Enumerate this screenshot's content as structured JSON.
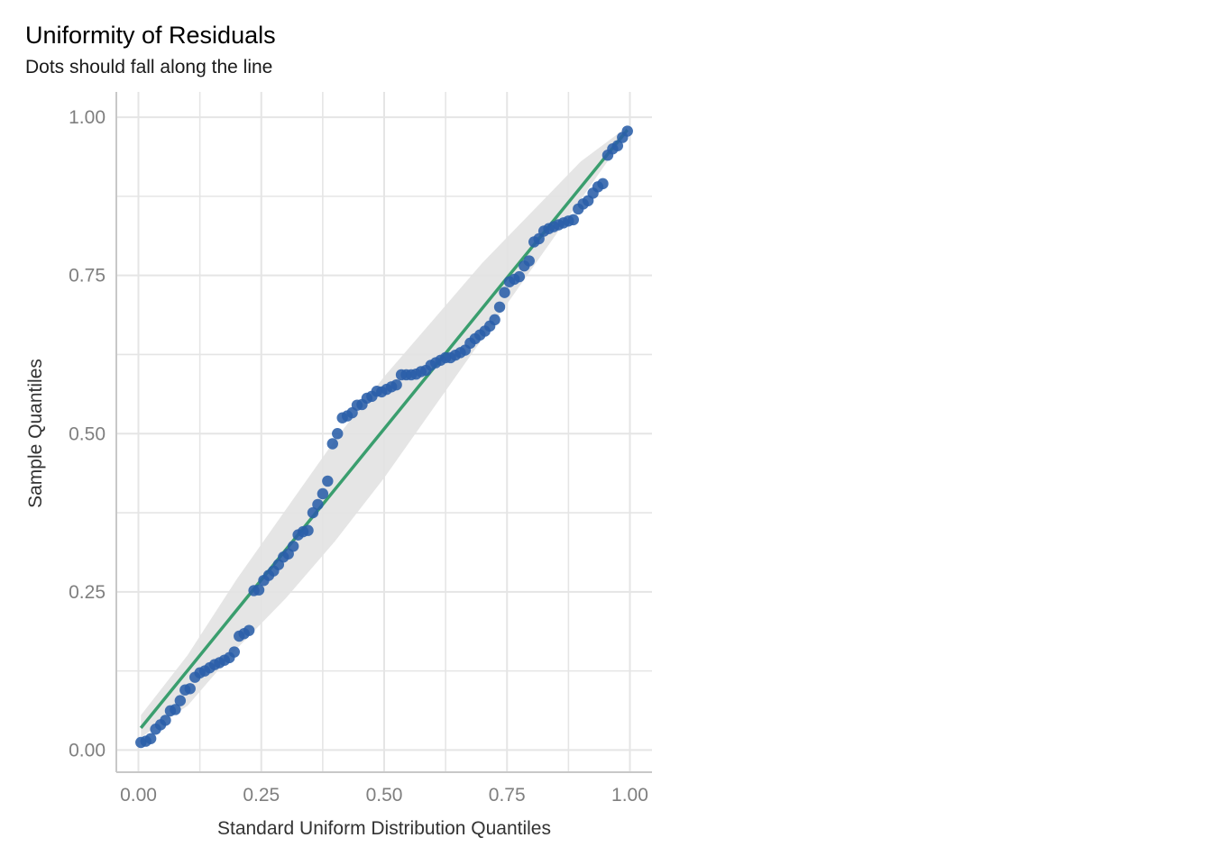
{
  "chart_data": {
    "type": "scatter",
    "title": "Uniformity of Residuals",
    "subtitle": "Dots should fall along the line",
    "xlabel": "Standard Uniform Distribution Quantiles",
    "ylabel": "Sample Quantiles",
    "xlim": [
      -0.045,
      1.045
    ],
    "ylim": [
      -0.035,
      1.04
    ],
    "x_ticks": [
      "0.00",
      "0.25",
      "0.50",
      "0.75",
      "1.00"
    ],
    "y_ticks": [
      "0.00",
      "0.25",
      "0.50",
      "0.75",
      "1.00"
    ],
    "grid": true,
    "colors": {
      "points": "#2a5ea8",
      "line": "#3a9e6e",
      "band": "#e2e2e2",
      "grid": "#e5e5e5",
      "axis": "#c8c8c8"
    },
    "reference_line": {
      "x": [
        0.005,
        0.995
      ],
      "y": [
        0.035,
        0.98
      ]
    },
    "band": {
      "x": [
        0.005,
        0.1,
        0.2,
        0.3,
        0.4,
        0.5,
        0.6,
        0.7,
        0.8,
        0.9,
        0.995
      ],
      "lower": [
        0.02,
        0.07,
        0.16,
        0.24,
        0.33,
        0.43,
        0.54,
        0.65,
        0.76,
        0.87,
        0.975
      ],
      "upper": [
        0.055,
        0.15,
        0.27,
        0.38,
        0.49,
        0.59,
        0.68,
        0.77,
        0.85,
        0.93,
        0.985
      ]
    },
    "series": [
      {
        "x": [
          0.005,
          0.015,
          0.025,
          0.035,
          0.045,
          0.055,
          0.065,
          0.075,
          0.085,
          0.095,
          0.105,
          0.115,
          0.125,
          0.135,
          0.145,
          0.155,
          0.165,
          0.175,
          0.185,
          0.195,
          0.205,
          0.215,
          0.225,
          0.235,
          0.245,
          0.255,
          0.265,
          0.275,
          0.285,
          0.295,
          0.305,
          0.315,
          0.325,
          0.335,
          0.345,
          0.355,
          0.365,
          0.375,
          0.385,
          0.395,
          0.405,
          0.415,
          0.425,
          0.435,
          0.445,
          0.455,
          0.465,
          0.475,
          0.485,
          0.495,
          0.505,
          0.515,
          0.525,
          0.535,
          0.545,
          0.555,
          0.565,
          0.575,
          0.585,
          0.595,
          0.605,
          0.615,
          0.625,
          0.635,
          0.645,
          0.655,
          0.665,
          0.675,
          0.685,
          0.695,
          0.705,
          0.715,
          0.725,
          0.735,
          0.745,
          0.755,
          0.765,
          0.775,
          0.785,
          0.795,
          0.805,
          0.815,
          0.825,
          0.835,
          0.845,
          0.855,
          0.865,
          0.875,
          0.885,
          0.895,
          0.905,
          0.915,
          0.925,
          0.935,
          0.945,
          0.955,
          0.965,
          0.975,
          0.985,
          0.995
        ],
        "y": [
          0.012,
          0.014,
          0.018,
          0.033,
          0.04,
          0.047,
          0.062,
          0.064,
          0.078,
          0.095,
          0.097,
          0.115,
          0.122,
          0.125,
          0.13,
          0.135,
          0.138,
          0.142,
          0.146,
          0.155,
          0.18,
          0.184,
          0.189,
          0.252,
          0.253,
          0.268,
          0.276,
          0.283,
          0.293,
          0.305,
          0.31,
          0.322,
          0.34,
          0.345,
          0.347,
          0.375,
          0.388,
          0.405,
          0.425,
          0.484,
          0.5,
          0.525,
          0.528,
          0.533,
          0.545,
          0.546,
          0.556,
          0.559,
          0.567,
          0.566,
          0.57,
          0.574,
          0.577,
          0.593,
          0.593,
          0.593,
          0.594,
          0.598,
          0.6,
          0.608,
          0.612,
          0.616,
          0.62,
          0.62,
          0.624,
          0.628,
          0.632,
          0.643,
          0.65,
          0.656,
          0.662,
          0.67,
          0.68,
          0.7,
          0.723,
          0.74,
          0.744,
          0.748,
          0.765,
          0.773,
          0.803,
          0.808,
          0.82,
          0.824,
          0.827,
          0.83,
          0.833,
          0.836,
          0.838,
          0.855,
          0.863,
          0.868,
          0.88,
          0.89,
          0.895,
          0.94,
          0.95,
          0.955,
          0.968,
          0.978
        ]
      }
    ]
  }
}
